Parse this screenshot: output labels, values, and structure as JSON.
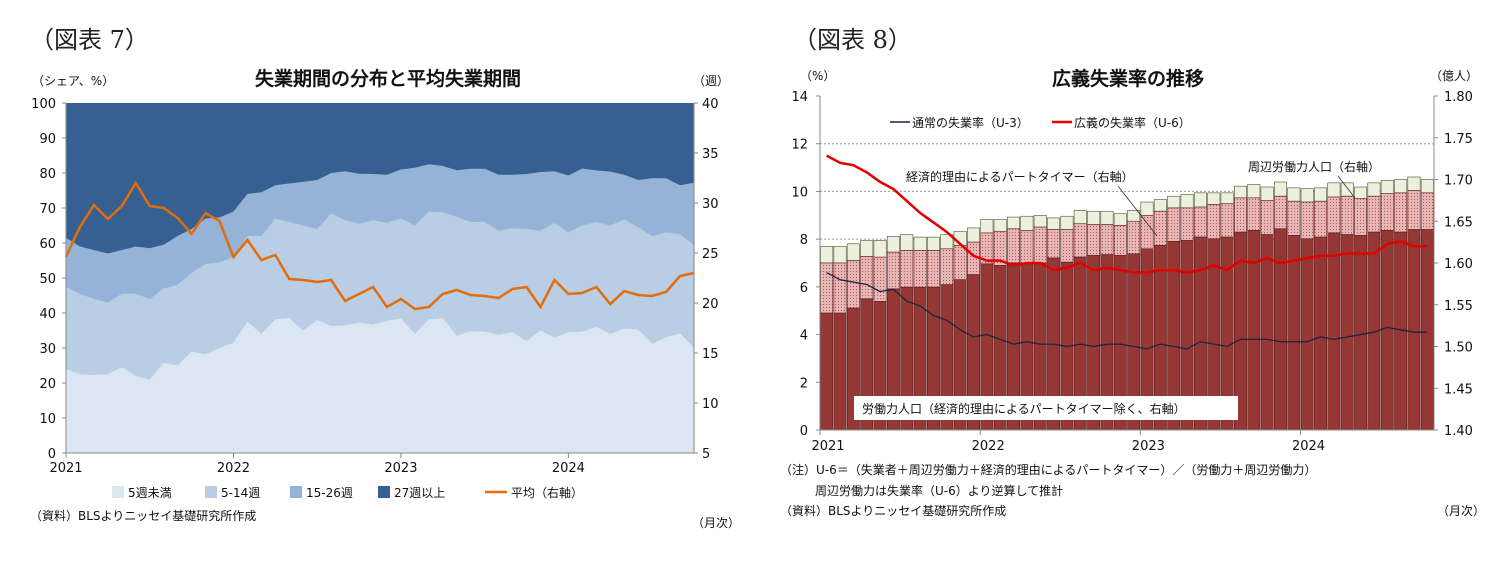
{
  "chart_data": [
    {
      "type": "area",
      "figure_label": "（図表 7）",
      "title": "失業期間の分布と平均失業期間",
      "ylabel_left": "（シェア、%）",
      "ylabel_right": "（週）",
      "xlabel": "（月次）",
      "source": "（資料）BLSよりニッセイ基礎研究所作成",
      "ylim_left": [
        0,
        100
      ],
      "ylim_right": [
        5,
        40
      ],
      "yticks_left": [
        "0",
        "10",
        "20",
        "30",
        "40",
        "50",
        "60",
        "70",
        "80",
        "90",
        "100"
      ],
      "yticks_right": [
        "5",
        "10",
        "15",
        "20",
        "25",
        "30",
        "35",
        "40"
      ],
      "xticks": [
        "2021",
        "2022",
        "2023",
        "2024"
      ],
      "x_range": "2021-01 to 2024-10 (monthly)",
      "legend_position": "bottom",
      "colors": {
        "lt5": "#dce6f2",
        "w5_14": "#b9cde5",
        "w15_26": "#95b3d7",
        "w27plus": "#366092",
        "mean": "#e46c0a"
      },
      "series": [
        {
          "name": "5週未満",
          "stacked_share": [
            24,
            22.5,
            22.3,
            22.5,
            24.5,
            22,
            21,
            25.8,
            25,
            29,
            28.2,
            30,
            31.5,
            37.5,
            34,
            38.2,
            38.5,
            35,
            38,
            36.3,
            36.5,
            37.3,
            36.7,
            37.8,
            38.5,
            34,
            38.2,
            38.5,
            33.5,
            34.8,
            34.7,
            33.8,
            34.5,
            32,
            35,
            33,
            34.5,
            34.7,
            36,
            34,
            35.5,
            35.3,
            31.2,
            33,
            34.2,
            30
          ]
        },
        {
          "name": "5-14週",
          "cumulative_top": [
            47.5,
            45.5,
            44,
            43,
            45.5,
            45.5,
            44,
            47,
            48,
            51.5,
            54,
            54.5,
            56,
            62,
            62,
            67,
            66,
            65,
            64,
            68.5,
            66.5,
            65.5,
            66.5,
            65.8,
            67,
            65,
            69,
            68.8,
            67.5,
            66,
            66,
            63.5,
            64.2,
            64,
            63.5,
            65.7,
            63,
            65,
            66,
            65,
            66.7,
            64.5,
            62,
            63,
            62.5,
            59.5
          ]
        },
        {
          "name": "15-26週",
          "cumulative_top": [
            61.5,
            59,
            58,
            57,
            58,
            59,
            58.5,
            59.5,
            62,
            64,
            67,
            67.3,
            69,
            74,
            74.5,
            76.5,
            77,
            77.5,
            78,
            80,
            80.5,
            79.8,
            79.7,
            79.5,
            81,
            81.5,
            82.5,
            82,
            80.8,
            81.2,
            81.2,
            79.5,
            79.5,
            79.7,
            80.3,
            80.5,
            79.3,
            81.3,
            80.7,
            80.4,
            79.5,
            78,
            78.5,
            78.5,
            76.5,
            77.2
          ]
        },
        {
          "name": "27週以上",
          "cumulative_top": "100"
        },
        {
          "name": "平均（右軸）",
          "axis": "right",
          "values": [
            24.6,
            27.6,
            29.8,
            28.4,
            29.7,
            32,
            29.7,
            29.5,
            28.5,
            26.9,
            29,
            28.2,
            24.6,
            26.3,
            24.3,
            24.8,
            22.4,
            22.3,
            22.1,
            22.3,
            20.2,
            20.9,
            21.6,
            19.6,
            20.4,
            19.4,
            19.6,
            20.9,
            21.3,
            20.8,
            20.7,
            20.5,
            21.4,
            21.6,
            19.6,
            22.3,
            20.9,
            21.0,
            21.6,
            19.9,
            21.2,
            20.8,
            20.7,
            21.1,
            22.7,
            23.0
          ]
        }
      ]
    },
    {
      "type": "bar+line",
      "figure_label": "（図表 8）",
      "title": "広義失業率の推移",
      "ylabel_left": "（%）",
      "ylabel_right": "（億人）",
      "xlabel": "（月次）",
      "ylim_left": [
        0,
        14
      ],
      "ylim_right": [
        1.4,
        1.8
      ],
      "yticks_left": [
        "0",
        "2",
        "4",
        "6",
        "8",
        "10",
        "12",
        "14"
      ],
      "yticks_right": [
        "1.40",
        "1.45",
        "1.50",
        "1.55",
        "1.60",
        "1.65",
        "1.70",
        "1.75",
        "1.80"
      ],
      "xticks": [
        "2021",
        "2022",
        "2023",
        "2024"
      ],
      "x_range": "2021-01 to 2024-10 (monthly)",
      "legend_position": "top-left",
      "colors": {
        "labor": "#953735",
        "parttime": "#e6b9b8",
        "marginal": "#ebf1de",
        "u3": "#1f2340",
        "u6": "#e00000"
      },
      "annotations": {
        "labor": "労働力人口（経済的理由によるパートタイマー除く、右軸）",
        "parttime": "経済的理由によるパートタイマー（右軸）",
        "marginal": "周辺労働力人口（右軸）"
      },
      "bars_stacked_right_axis": {
        "labor_force_oku": [
          1.54,
          1.54,
          1.546,
          1.557,
          1.554,
          1.569,
          1.571,
          1.571,
          1.571,
          1.574,
          1.58,
          1.586,
          1.599,
          1.597,
          1.6,
          1.6,
          1.6,
          1.606,
          1.601,
          1.607,
          1.609,
          1.61,
          1.609,
          1.611,
          1.617,
          1.621,
          1.626,
          1.627,
          1.631,
          1.629,
          1.631,
          1.637,
          1.639,
          1.634,
          1.641,
          1.633,
          1.629,
          1.631,
          1.636,
          1.634,
          1.633,
          1.637,
          1.639,
          1.637,
          1.64,
          1.64
        ],
        "involuntary_parttime_oku": [
          0.06,
          0.06,
          0.057,
          0.051,
          0.053,
          0.044,
          0.044,
          0.044,
          0.044,
          0.043,
          0.041,
          0.039,
          0.037,
          0.041,
          0.041,
          0.039,
          0.043,
          0.034,
          0.039,
          0.04,
          0.037,
          0.036,
          0.036,
          0.039,
          0.04,
          0.041,
          0.04,
          0.039,
          0.036,
          0.041,
          0.04,
          0.041,
          0.039,
          0.041,
          0.039,
          0.041,
          0.044,
          0.043,
          0.043,
          0.046,
          0.044,
          0.043,
          0.044,
          0.047,
          0.047,
          0.044
        ],
        "marginally_attached_oku": [
          0.02,
          0.02,
          0.02,
          0.019,
          0.02,
          0.019,
          0.019,
          0.016,
          0.016,
          0.017,
          0.017,
          0.017,
          0.016,
          0.014,
          0.014,
          0.017,
          0.014,
          0.014,
          0.016,
          0.016,
          0.016,
          0.016,
          0.014,
          0.013,
          0.016,
          0.014,
          0.014,
          0.016,
          0.017,
          0.014,
          0.013,
          0.014,
          0.016,
          0.016,
          0.017,
          0.016,
          0.016,
          0.016,
          0.017,
          0.016,
          0.014,
          0.016,
          0.016,
          0.016,
          0.016,
          0.016
        ]
      },
      "lines_left_axis": [
        {
          "name": "通常の失業率（U-3）",
          "values": [
            6.6,
            6.3,
            6.2,
            6.1,
            5.8,
            5.9,
            5.4,
            5.2,
            4.8,
            4.6,
            4.2,
            3.9,
            4.0,
            3.8,
            3.6,
            3.7,
            3.6,
            3.6,
            3.5,
            3.6,
            3.5,
            3.6,
            3.6,
            3.5,
            3.4,
            3.6,
            3.5,
            3.4,
            3.7,
            3.6,
            3.5,
            3.8,
            3.8,
            3.8,
            3.7,
            3.7,
            3.7,
            3.9,
            3.8,
            3.9,
            4.0,
            4.1,
            4.3,
            4.2,
            4.1,
            4.1
          ]
        },
        {
          "name": "広義の失業率（U-6）",
          "values": [
            11.5,
            11.2,
            11.1,
            10.8,
            10.4,
            10.1,
            9.6,
            9.1,
            8.7,
            8.3,
            7.8,
            7.3,
            7.1,
            7.1,
            6.9,
            7.0,
            7.0,
            6.7,
            6.8,
            7.0,
            6.7,
            6.8,
            6.7,
            6.6,
            6.6,
            6.7,
            6.7,
            6.6,
            6.7,
            6.9,
            6.7,
            7.1,
            7.0,
            7.2,
            7.0,
            7.1,
            7.2,
            7.3,
            7.3,
            7.4,
            7.4,
            7.4,
            7.8,
            7.9,
            7.7,
            7.7
          ]
        }
      ],
      "notes": [
        "（注）U-6＝（失業者＋周辺労働力＋経済的理由によるパートタイマー）／（労働力＋周辺労働力）",
        "周辺労働力は失業率（U-6）より逆算して推計"
      ],
      "source": "（資料）BLSよりニッセイ基礎研究所作成"
    }
  ]
}
